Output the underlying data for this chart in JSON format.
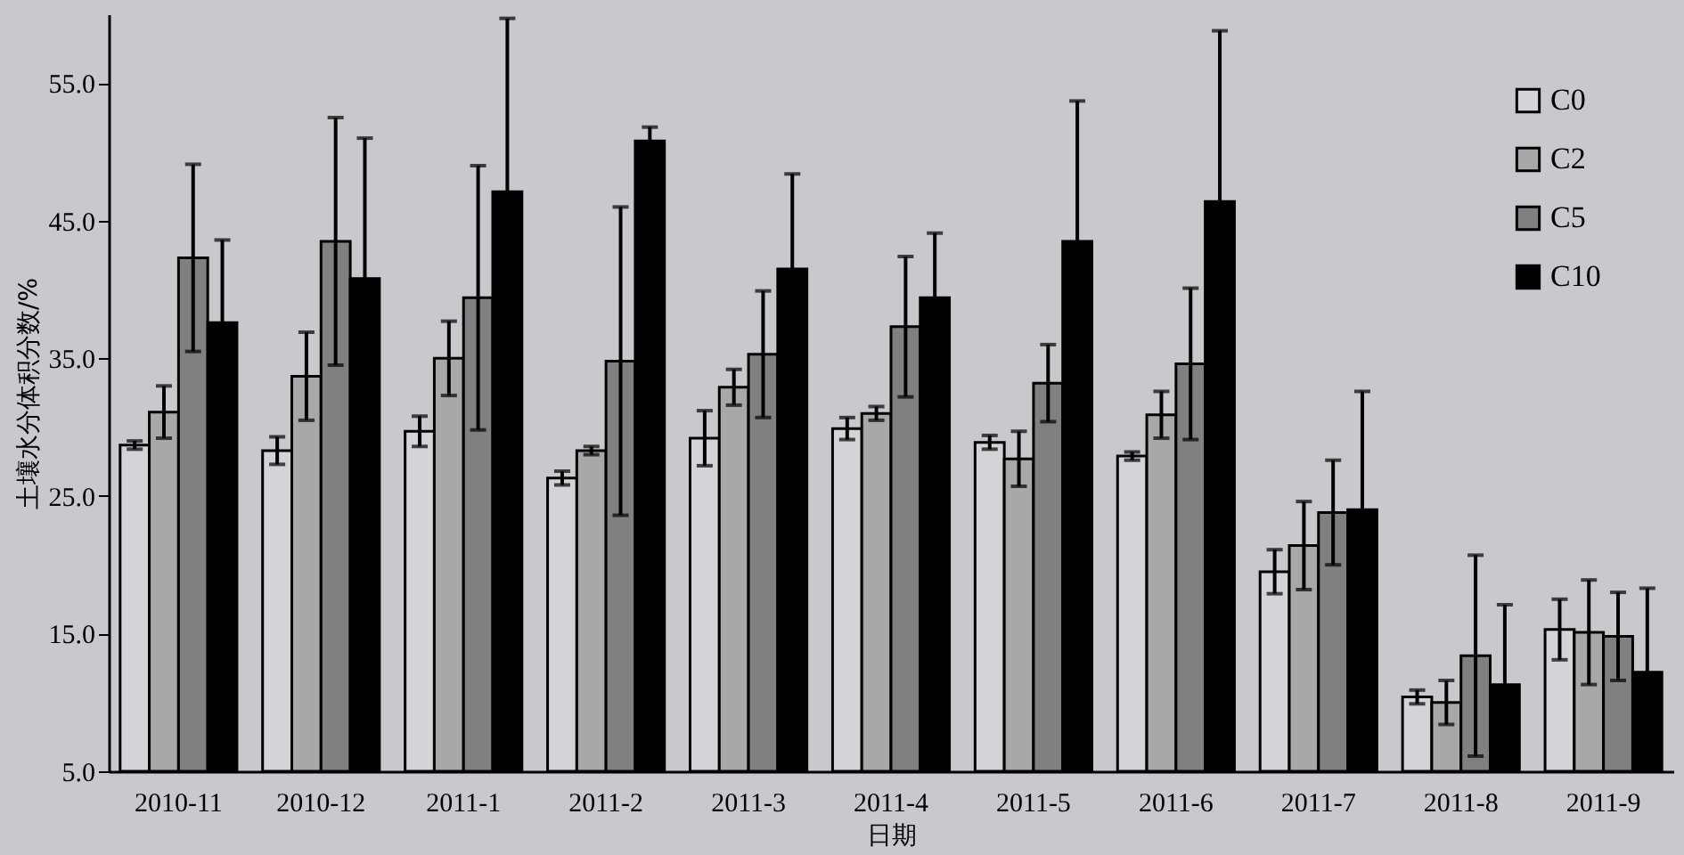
{
  "chart_data": {
    "type": "bar",
    "xlabel": "日期",
    "ylabel": "土壤水分体积分数/%",
    "categories": [
      "2010-11",
      "2010-12",
      "2011-1",
      "2011-2",
      "2011-3",
      "2011-4",
      "2011-5",
      "2011-6",
      "2011-7",
      "2011-8",
      "2011-9"
    ],
    "series": [
      {
        "name": "C0",
        "color": "#d4d4d8",
        "values": [
          28.7,
          28.3,
          29.7,
          26.3,
          29.2,
          29.9,
          28.9,
          27.9,
          19.5,
          10.4,
          15.3
        ],
        "errors": [
          0.3,
          1.0,
          1.1,
          0.5,
          2.0,
          0.8,
          0.5,
          0.3,
          1.6,
          0.5,
          2.2
        ]
      },
      {
        "name": "C2",
        "color": "#a8a8a8",
        "values": [
          31.1,
          33.7,
          35.0,
          28.3,
          32.9,
          31.0,
          27.7,
          30.9,
          21.4,
          10.0,
          15.1
        ],
        "errors": [
          1.9,
          3.2,
          2.7,
          0.3,
          1.3,
          0.5,
          2.0,
          1.7,
          3.2,
          1.6,
          3.8
        ]
      },
      {
        "name": "C5",
        "color": "#808080",
        "values": [
          42.3,
          43.5,
          39.4,
          34.8,
          35.3,
          37.3,
          33.2,
          34.6,
          23.8,
          13.4,
          14.8
        ],
        "errors": [
          6.8,
          9.0,
          9.6,
          11.2,
          4.6,
          5.1,
          2.8,
          5.5,
          3.8,
          7.3,
          3.2
        ]
      },
      {
        "name": "C10",
        "color": "#000000",
        "values": [
          37.6,
          40.8,
          47.1,
          50.8,
          41.5,
          39.4,
          43.5,
          46.4,
          24.0,
          11.3,
          12.2
        ],
        "errors": [
          6.0,
          10.2,
          12.6,
          1.0,
          6.9,
          4.7,
          10.2,
          12.4,
          8.6,
          5.8,
          6.1
        ]
      }
    ],
    "ylim": [
      5,
      60
    ],
    "yticks": [
      {
        "value": 5,
        "label": "5.0"
      },
      {
        "value": 15,
        "label": "15.0"
      },
      {
        "value": 25,
        "label": "25.0"
      },
      {
        "value": 35,
        "label": "35.0"
      },
      {
        "value": 45,
        "label": "45.0"
      },
      {
        "value": 55,
        "label": "55.0"
      }
    ],
    "grid": false,
    "legend": "top right"
  }
}
